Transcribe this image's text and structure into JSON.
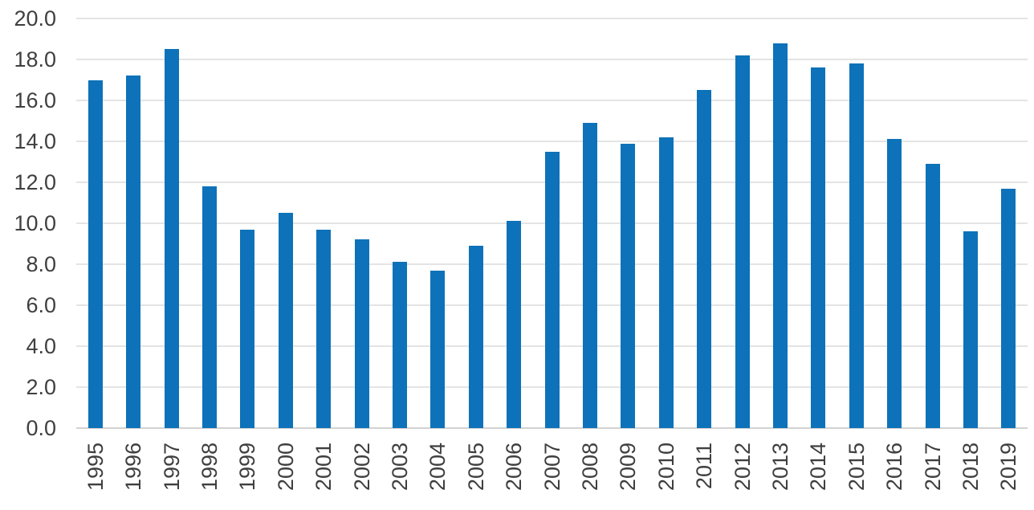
{
  "chart_data": {
    "type": "bar",
    "title": "",
    "xlabel": "",
    "ylabel": "",
    "categories": [
      "1995",
      "1996",
      "1997",
      "1998",
      "1999",
      "2000",
      "2001",
      "2002",
      "2003",
      "2004",
      "2005",
      "2006",
      "2007",
      "2008",
      "2009",
      "2010",
      "2011",
      "2012",
      "2013",
      "2014",
      "2015",
      "2016",
      "2017",
      "2018",
      "2019"
    ],
    "values": [
      17.0,
      17.2,
      18.5,
      11.8,
      9.7,
      10.5,
      9.7,
      9.2,
      8.1,
      7.7,
      8.9,
      10.1,
      13.5,
      14.9,
      13.9,
      14.2,
      16.5,
      18.2,
      18.8,
      17.6,
      17.8,
      14.1,
      12.9,
      9.6,
      11.7
    ],
    "ylim": [
      0.0,
      20.0
    ],
    "y_ticks": [
      "0.0",
      "2.0",
      "4.0",
      "6.0",
      "8.0",
      "10.0",
      "12.0",
      "14.0",
      "16.0",
      "18.0",
      "20.0"
    ],
    "grid": true,
    "legend": "none",
    "colors": {
      "bar": "#0d72b9",
      "gridline": "#e4e4e4",
      "axis_line": "#d2d2d2",
      "tick_text": "#3f3f3f",
      "background": "#ffffff"
    }
  }
}
